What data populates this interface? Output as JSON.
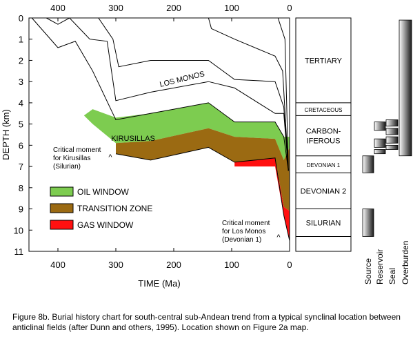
{
  "chart_data": {
    "type": "area",
    "xlabel": "TIME (Ma)",
    "ylabel": "DEPTH (km)",
    "xlim": [
      450,
      0
    ],
    "ylim": [
      0,
      11
    ],
    "x_ticks": [
      400,
      300,
      200,
      100,
      0
    ],
    "y_ticks": [
      0,
      1,
      2,
      3,
      4,
      5,
      6,
      7,
      8,
      9,
      10,
      11
    ],
    "x_tick_labels": [
      "400",
      "300",
      "200",
      "100",
      "0"
    ],
    "y_tick_labels": [
      "0",
      "1",
      "2",
      "3",
      "4",
      "5",
      "6",
      "7",
      "8",
      "9",
      "10",
      "11"
    ],
    "grid": false,
    "legend_position": "lower-left",
    "series": [
      {
        "name": "OIL WINDOW",
        "color": "#7dcc50",
        "top": [
          [
            355,
            4.6
          ],
          [
            340,
            4.3
          ],
          [
            300,
            4.7
          ],
          [
            240,
            4.5
          ],
          [
            140,
            4.0
          ],
          [
            95,
            4.9
          ],
          [
            25,
            4.9
          ],
          [
            10,
            5.6
          ],
          [
            0,
            5.6
          ]
        ],
        "bottom": [
          [
            0,
            6.1
          ],
          [
            10,
            6.7
          ],
          [
            25,
            5.7
          ],
          [
            95,
            5.6
          ],
          [
            140,
            5.2
          ],
          [
            240,
            5.8
          ],
          [
            300,
            5.9
          ],
          [
            340,
            5.0
          ],
          [
            355,
            4.6
          ]
        ]
      },
      {
        "name": "TRANSITION ZONE",
        "color": "#9b6a12",
        "top": [
          [
            300,
            5.9
          ],
          [
            240,
            5.8
          ],
          [
            140,
            5.2
          ],
          [
            95,
            5.6
          ],
          [
            25,
            5.7
          ],
          [
            10,
            6.7
          ],
          [
            0,
            6.1
          ]
        ],
        "bottom": [
          [
            0,
            9.1
          ],
          [
            10,
            8.9
          ],
          [
            25,
            6.6
          ],
          [
            95,
            6.8
          ],
          [
            140,
            6.1
          ],
          [
            240,
            6.7
          ],
          [
            300,
            6.4
          ]
        ]
      },
      {
        "name": "GAS WINDOW",
        "color": "#ff1010",
        "top": [
          [
            95,
            6.8
          ],
          [
            25,
            6.6
          ],
          [
            10,
            8.9
          ],
          [
            0,
            9.1
          ]
        ],
        "bottom": [
          [
            0,
            10.5
          ],
          [
            10,
            9.3
          ],
          [
            25,
            7.0
          ],
          [
            95,
            7.0
          ]
        ]
      }
    ],
    "burial_lines": [
      [
        [
          445,
          0
        ],
        [
          400,
          1.4
        ],
        [
          370,
          1.1
        ],
        [
          340,
          2.5
        ],
        [
          300,
          4.8
        ],
        [
          240,
          4.5
        ],
        [
          140,
          4.0
        ],
        [
          95,
          4.9
        ],
        [
          25,
          4.9
        ],
        [
          10,
          5.6
        ],
        [
          2,
          7.2
        ]
      ],
      [
        [
          420,
          0
        ],
        [
          400,
          0.3
        ],
        [
          380,
          0
        ],
        [
          345,
          1.0
        ],
        [
          315,
          1.1
        ],
        [
          300,
          3.9
        ],
        [
          240,
          3.5
        ],
        [
          140,
          3.0
        ],
        [
          95,
          3.3
        ],
        [
          25,
          4.5
        ],
        [
          10,
          4.5
        ],
        [
          2,
          7.2
        ]
      ],
      [
        [
          330,
          0
        ],
        [
          320,
          0.4
        ],
        [
          305,
          1.0
        ],
        [
          295,
          2.3
        ],
        [
          240,
          2.0
        ],
        [
          140,
          2.0
        ],
        [
          95,
          2.9
        ],
        [
          25,
          3.0
        ],
        [
          10,
          4.2
        ],
        [
          2,
          7.2
        ]
      ],
      [
        [
          140,
          0
        ],
        [
          135,
          0.5
        ],
        [
          95,
          1.0
        ],
        [
          25,
          1.8
        ],
        [
          12,
          2.5
        ],
        [
          2,
          7.2
        ]
      ],
      [
        [
          20,
          0
        ],
        [
          8,
          1.0
        ],
        [
          2,
          7.2
        ]
      ]
    ],
    "deep_line": [
      [
        300,
        6.4
      ],
      [
        240,
        6.7
      ],
      [
        140,
        6.1
      ],
      [
        95,
        6.8
      ],
      [
        25,
        6.6
      ],
      [
        10,
        9.3
      ],
      [
        0,
        10.5
      ]
    ],
    "annotations": {
      "los_monos": "LOS MONOS",
      "kirusillas": "KIRUSILLAS",
      "critical_kirusillas": [
        "Critical moment",
        "for Kirusillas",
        "(Silurian)"
      ],
      "critical_los_monos": [
        "Critical moment",
        "for Los Monos",
        "(Devonian 1)"
      ],
      "caret": "^"
    },
    "stratigraphy": [
      {
        "label": [
          "TERTIARY"
        ],
        "top": 0,
        "bottom": 4.0
      },
      {
        "label": [
          "CRETACEOUS"
        ],
        "top": 4.0,
        "bottom": 4.6
      },
      {
        "label": [
          "CARBON-",
          "IFEROUS"
        ],
        "top": 4.6,
        "bottom": 6.5
      },
      {
        "label": [
          "DEVONIAN 1"
        ],
        "top": 6.5,
        "bottom": 7.3
      },
      {
        "label": [
          "DEVONIAN 2"
        ],
        "top": 7.3,
        "bottom": 9.0
      },
      {
        "label": [
          "SILURIAN"
        ],
        "top": 9.0,
        "bottom": 10.3
      },
      {
        "label": [
          ""
        ],
        "top": 10.3,
        "bottom": 11.0
      }
    ],
    "petroleum_system": {
      "columns": [
        "Source",
        "Reservoir",
        "Seal",
        "Overburden"
      ],
      "source": [
        [
          6.5,
          7.3
        ],
        [
          9.0,
          10.3
        ]
      ],
      "reservoir": [
        [
          4.9,
          5.3
        ],
        [
          5.7,
          6.1
        ],
        [
          6.2,
          6.4
        ]
      ],
      "seal": [
        [
          4.8,
          5.1
        ],
        [
          5.2,
          5.5
        ],
        [
          5.6,
          5.9
        ],
        [
          6.0,
          6.2
        ]
      ],
      "overburden": [
        [
          0.1,
          6.5
        ]
      ]
    }
  },
  "caption": "Figure 8b.  Burial history chart for south-central sub-Andean trend from a typical synclinal location between anticlinal fields (after Dunn and others, 1995).  Location shown on Figure 2a map."
}
